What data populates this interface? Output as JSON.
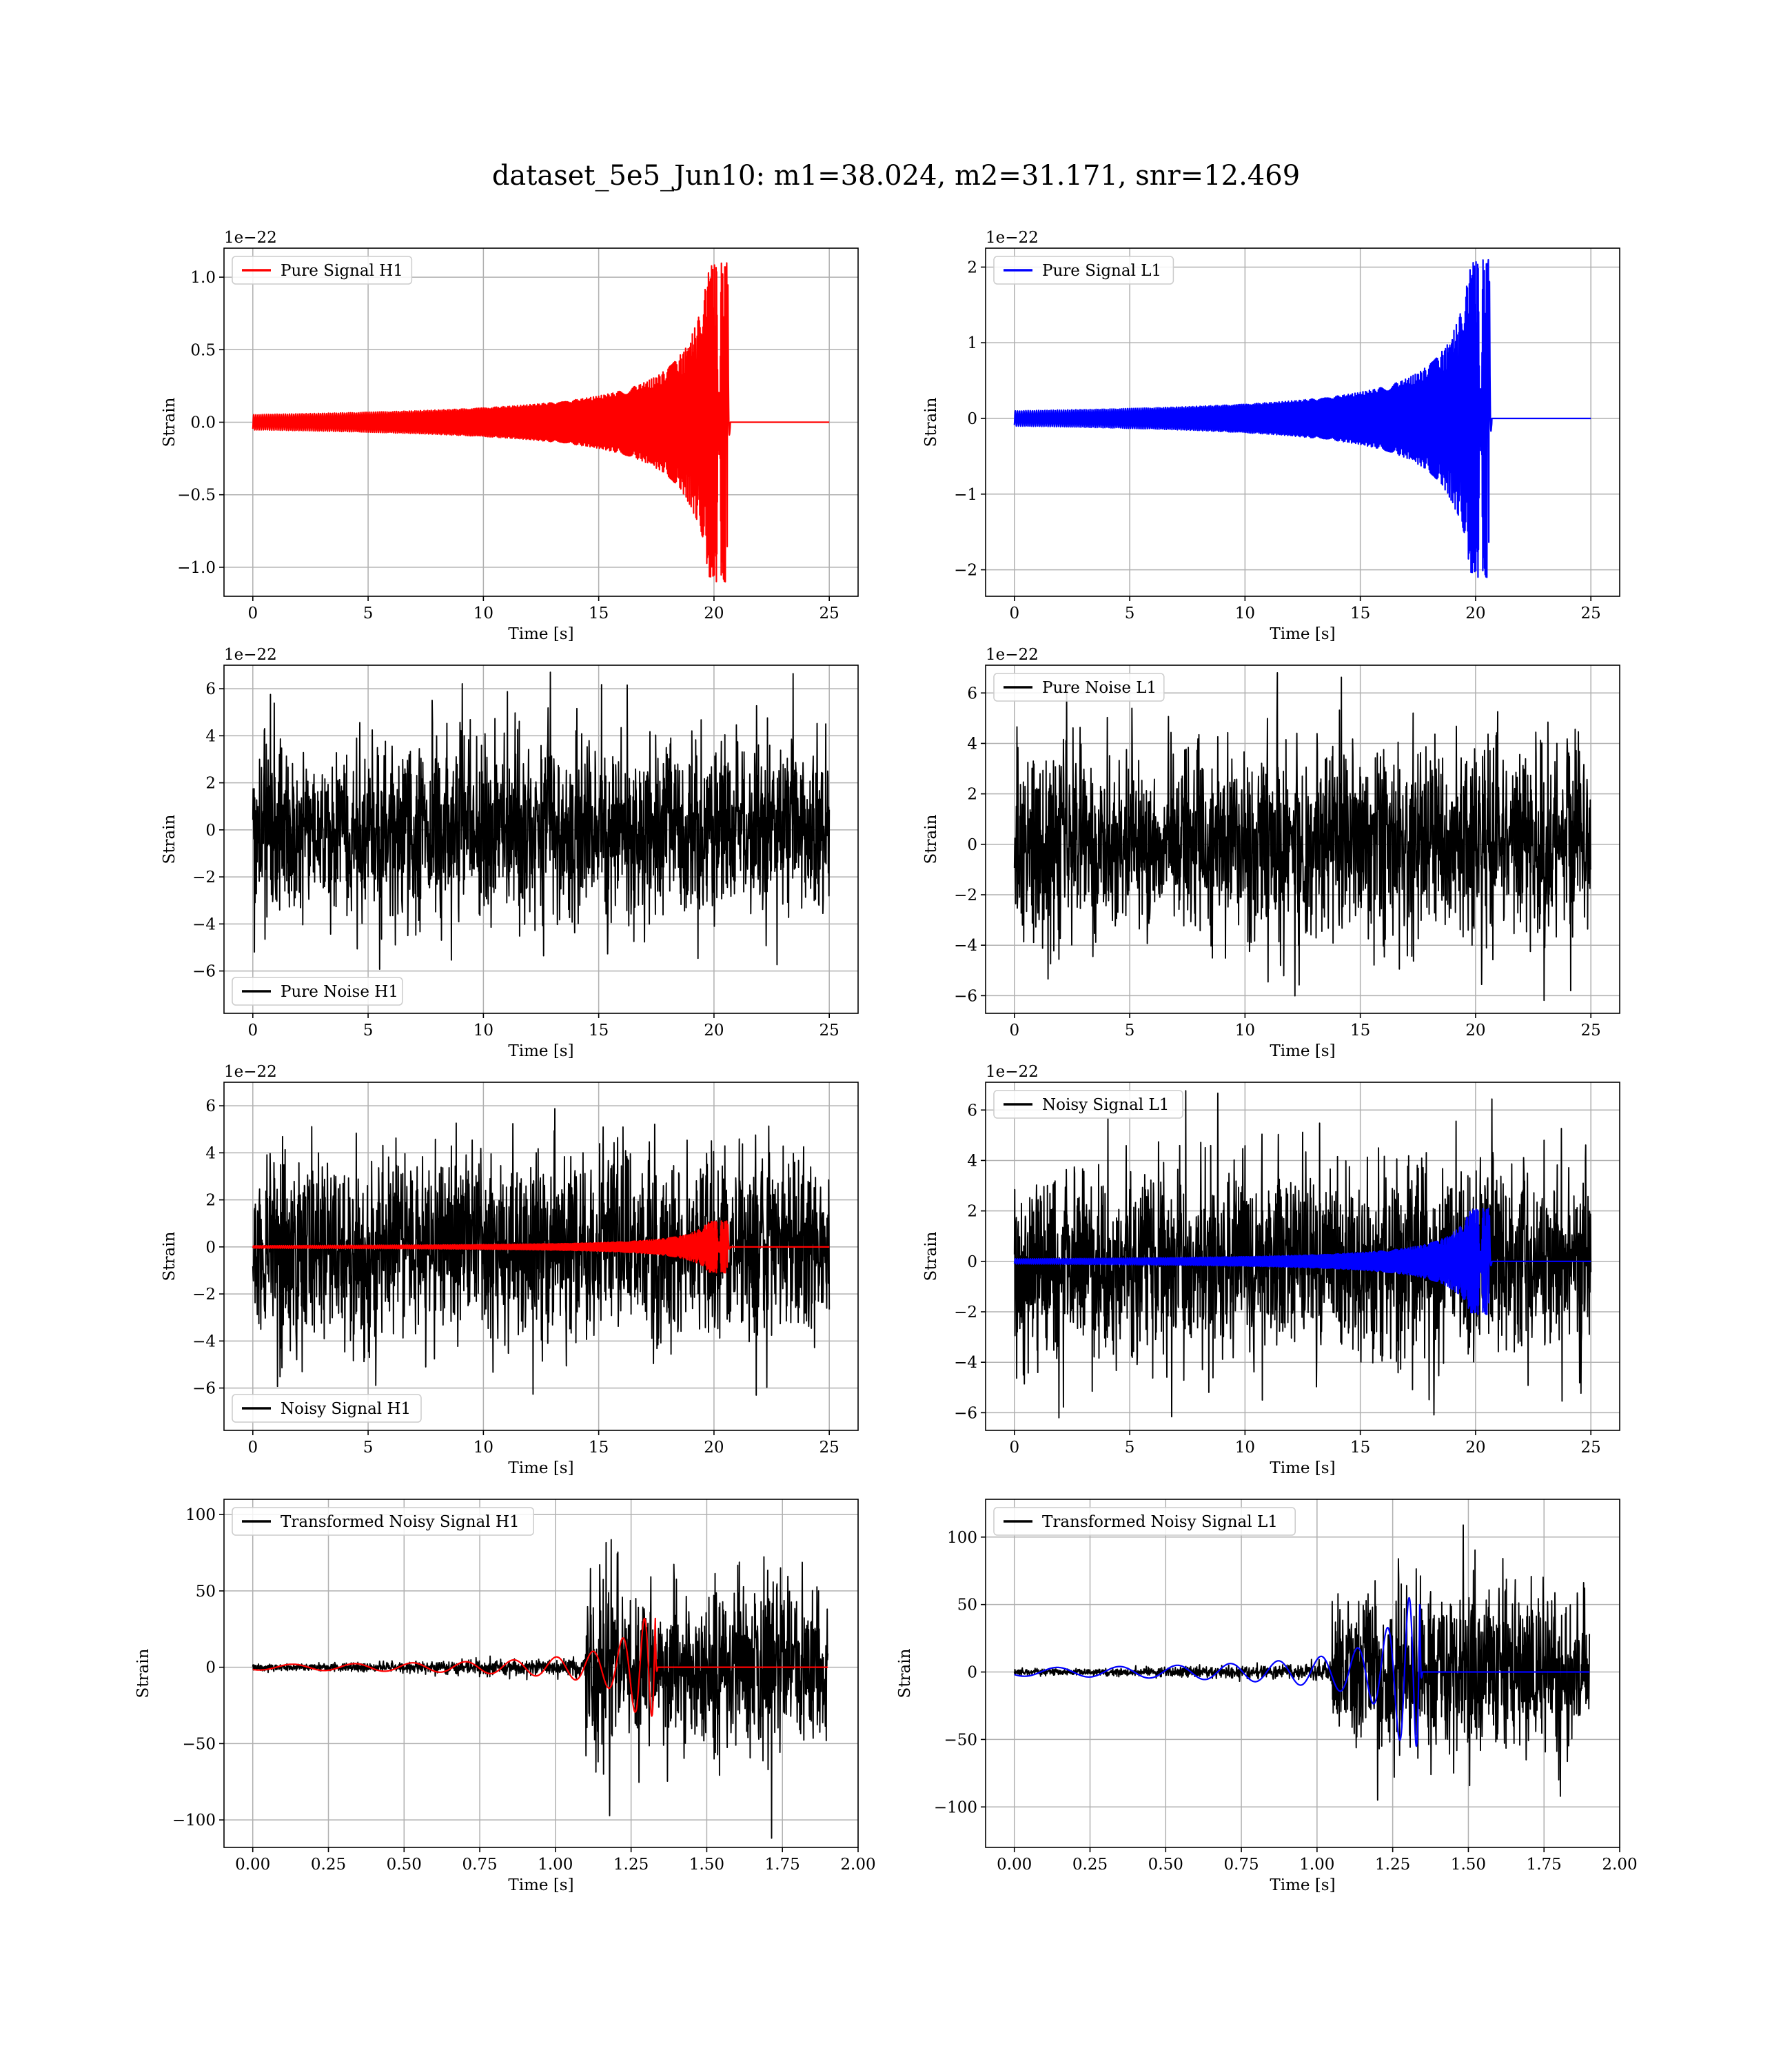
{
  "figure_title": "dataset_5e5_Jun10: m1=38.024, m2=31.171, snr=12.469",
  "colors": {
    "h1_signal": "#ff0000",
    "l1_signal": "#0000ff",
    "noise": "#000000",
    "grid": "#b0b0b0"
  },
  "chart_data": [
    {
      "type": "line",
      "panel": "row1-left",
      "xlabel": "Time [s]",
      "ylabel": "Strain",
      "offset_text": "1e−22",
      "xlim": [
        -1.25,
        26.25
      ],
      "ylim": [
        -1.2,
        1.2
      ],
      "xticks": [
        0,
        5,
        10,
        15,
        20,
        25
      ],
      "xtick_labels": [
        "0",
        "5",
        "10",
        "15",
        "20",
        "25"
      ],
      "yticks": [
        -1.0,
        -0.5,
        0.0,
        0.5,
        1.0
      ],
      "ytick_labels": [
        "−1.0",
        "−0.5",
        "0.0",
        "0.5",
        "1.0"
      ],
      "grid": true,
      "legend_position": "upper-left",
      "series": [
        {
          "name": "Pure Signal H1",
          "color": "#ff0000",
          "kind": "chirp",
          "signal_amp": 1.1,
          "t_start": 0,
          "t_end": 25,
          "t_merge": 20.6
        }
      ]
    },
    {
      "type": "line",
      "panel": "row1-right",
      "xlabel": "Time [s]",
      "ylabel": "Strain",
      "offset_text": "1e−22",
      "xlim": [
        -1.25,
        26.25
      ],
      "ylim": [
        -2.35,
        2.25
      ],
      "xticks": [
        0,
        5,
        10,
        15,
        20,
        25
      ],
      "xtick_labels": [
        "0",
        "5",
        "10",
        "15",
        "20",
        "25"
      ],
      "yticks": [
        -2,
        -1,
        0,
        1,
        2
      ],
      "ytick_labels": [
        "−2",
        "−1",
        "0",
        "1",
        "2"
      ],
      "grid": true,
      "legend_position": "upper-left",
      "series": [
        {
          "name": "Pure Signal L1",
          "color": "#0000ff",
          "kind": "chirp",
          "signal_amp": 2.1,
          "t_start": 0,
          "t_end": 25,
          "t_merge": 20.6
        }
      ]
    },
    {
      "type": "line",
      "panel": "row2-left",
      "xlabel": "Time [s]",
      "ylabel": "Strain",
      "offset_text": "1e−22",
      "xlim": [
        -1.25,
        26.25
      ],
      "ylim": [
        -7.8,
        7.0
      ],
      "xticks": [
        0,
        5,
        10,
        15,
        20,
        25
      ],
      "xtick_labels": [
        "0",
        "5",
        "10",
        "15",
        "20",
        "25"
      ],
      "yticks": [
        -6,
        -4,
        -2,
        0,
        2,
        4,
        6
      ],
      "ytick_labels": [
        "−6",
        "−4",
        "−2",
        "0",
        "2",
        "4",
        "6"
      ],
      "grid": true,
      "legend_position": "lower-left",
      "series": [
        {
          "name": "Pure Noise H1",
          "color": "#000000",
          "kind": "noise",
          "noise_amp": 7.0,
          "t_start": 0,
          "t_end": 25
        }
      ]
    },
    {
      "type": "line",
      "panel": "row2-right",
      "xlabel": "Time [s]",
      "ylabel": "Strain",
      "offset_text": "1e−22",
      "xlim": [
        -1.25,
        26.25
      ],
      "ylim": [
        -6.7,
        7.1
      ],
      "xticks": [
        0,
        5,
        10,
        15,
        20,
        25
      ],
      "xtick_labels": [
        "0",
        "5",
        "10",
        "15",
        "20",
        "25"
      ],
      "yticks": [
        -6,
        -4,
        -2,
        0,
        2,
        4,
        6
      ],
      "ytick_labels": [
        "−6",
        "−4",
        "−2",
        "0",
        "2",
        "4",
        "6"
      ],
      "grid": true,
      "legend_position": "upper-left",
      "series": [
        {
          "name": "Pure Noise L1",
          "color": "#000000",
          "kind": "noise",
          "noise_amp": 7.0,
          "t_start": 0,
          "t_end": 25
        }
      ]
    },
    {
      "type": "line",
      "panel": "row3-left",
      "xlabel": "Time [s]",
      "ylabel": "Strain",
      "offset_text": "1e−22",
      "xlim": [
        -1.25,
        26.25
      ],
      "ylim": [
        -7.8,
        7.0
      ],
      "xticks": [
        0,
        5,
        10,
        15,
        20,
        25
      ],
      "xtick_labels": [
        "0",
        "5",
        "10",
        "15",
        "20",
        "25"
      ],
      "yticks": [
        -6,
        -4,
        -2,
        0,
        2,
        4,
        6
      ],
      "ytick_labels": [
        "−6",
        "−4",
        "−2",
        "0",
        "2",
        "4",
        "6"
      ],
      "grid": true,
      "legend_position": "lower-left",
      "series": [
        {
          "name": "Noisy Signal H1",
          "color": "#000000",
          "kind": "noise",
          "noise_amp": 7.0,
          "t_start": 0,
          "t_end": 25
        },
        {
          "color": "#ff0000",
          "kind": "chirp",
          "signal_amp": 1.1,
          "t_start": 0,
          "t_end": 25,
          "t_merge": 20.6
        }
      ]
    },
    {
      "type": "line",
      "panel": "row3-right",
      "xlabel": "Time [s]",
      "ylabel": "Strain",
      "offset_text": "1e−22",
      "xlim": [
        -1.25,
        26.25
      ],
      "ylim": [
        -6.7,
        7.1
      ],
      "xticks": [
        0,
        5,
        10,
        15,
        20,
        25
      ],
      "xtick_labels": [
        "0",
        "5",
        "10",
        "15",
        "20",
        "25"
      ],
      "yticks": [
        -6,
        -4,
        -2,
        0,
        2,
        4,
        6
      ],
      "ytick_labels": [
        "−6",
        "−4",
        "−2",
        "0",
        "2",
        "4",
        "6"
      ],
      "grid": true,
      "legend_position": "upper-left",
      "series": [
        {
          "name": "Noisy Signal L1",
          "color": "#000000",
          "kind": "noise",
          "noise_amp": 7.0,
          "t_start": 0,
          "t_end": 25
        },
        {
          "color": "#0000ff",
          "kind": "chirp",
          "signal_amp": 2.1,
          "t_start": 0,
          "t_end": 25,
          "t_merge": 20.6
        }
      ]
    },
    {
      "type": "line",
      "panel": "row4-left",
      "xlabel": "Time [s]",
      "ylabel": "Strain",
      "offset_text": "",
      "xlim": [
        -0.095,
        2.0
      ],
      "ylim": [
        -118,
        110
      ],
      "xticks": [
        0.0,
        0.25,
        0.5,
        0.75,
        1.0,
        1.25,
        1.5,
        1.75,
        2.0
      ],
      "xtick_labels": [
        "0.00",
        "0.25",
        "0.50",
        "0.75",
        "1.00",
        "1.25",
        "1.50",
        "1.75",
        "2.00"
      ],
      "yticks": [
        -100,
        -50,
        0,
        50,
        100
      ],
      "ytick_labels": [
        "−100",
        "−50",
        "0",
        "50",
        "100"
      ],
      "grid": true,
      "legend_position": "upper-left",
      "series": [
        {
          "name": "Transformed Noisy Signal H1",
          "color": "#000000",
          "kind": "whitened",
          "t_start": 0,
          "t_end": 1.9,
          "t_rise": 1.1,
          "low_amp": 10,
          "high_amp": 100
        },
        {
          "color": "#ff0000",
          "kind": "chirp",
          "signal_amp": 32,
          "t_start": 0,
          "t_end": 1.9,
          "t_merge": 1.33,
          "cycles": 12
        }
      ]
    },
    {
      "type": "line",
      "panel": "row4-right",
      "xlabel": "Time [s]",
      "ylabel": "Strain",
      "offset_text": "",
      "xlim": [
        -0.095,
        2.0
      ],
      "ylim": [
        -130,
        128
      ],
      "xticks": [
        0.0,
        0.25,
        0.5,
        0.75,
        1.0,
        1.25,
        1.5,
        1.75,
        2.0
      ],
      "xtick_labels": [
        "0.00",
        "0.25",
        "0.50",
        "0.75",
        "1.00",
        "1.25",
        "1.50",
        "1.75",
        "2.00"
      ],
      "yticks": [
        -100,
        -50,
        0,
        50,
        100
      ],
      "ytick_labels": [
        "−100",
        "−50",
        "0",
        "50",
        "100"
      ],
      "grid": true,
      "legend_position": "upper-left",
      "series": [
        {
          "name": "Transformed Noisy Signal L1",
          "color": "#000000",
          "kind": "whitened",
          "t_start": 0,
          "t_end": 1.9,
          "t_rise": 1.05,
          "low_amp": 10,
          "high_amp": 115
        },
        {
          "color": "#0000ff",
          "kind": "chirp",
          "signal_amp": 55,
          "t_start": 0,
          "t_end": 1.9,
          "t_merge": 1.34,
          "cycles": 12
        }
      ]
    }
  ]
}
